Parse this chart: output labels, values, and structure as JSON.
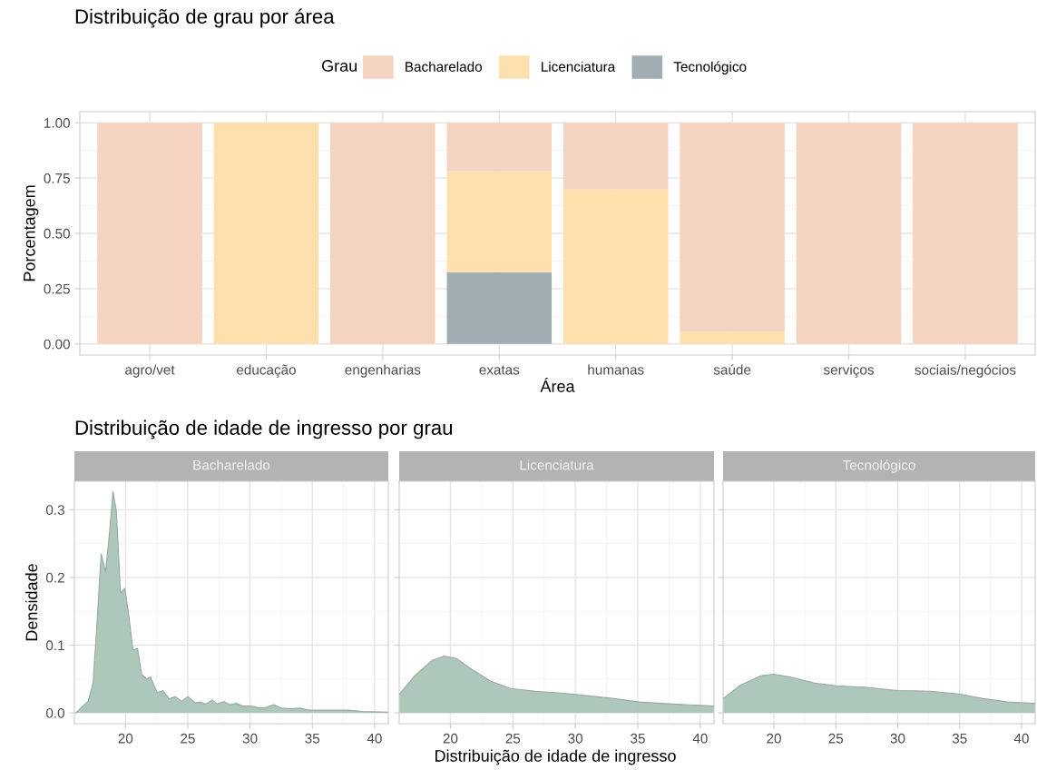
{
  "chart_data": [
    {
      "type": "bar",
      "title": "Distribuição de grau por área",
      "xlabel": "Área",
      "ylabel": "Porcentagem",
      "legend_title": "Grau",
      "legend": "top",
      "stacked": true,
      "grid": true,
      "categories": [
        "agro/vet",
        "educação",
        "engenharias",
        "exatas",
        "humanas",
        "saúde",
        "serviços",
        "sociais/negócios"
      ],
      "series": [
        {
          "name": "Tecnológico",
          "color": "#a0aeb3",
          "values": [
            0,
            0,
            0,
            0.325,
            0,
            0,
            0,
            0
          ]
        },
        {
          "name": "Licenciatura",
          "color": "#fde0ae",
          "values": [
            0,
            1,
            0,
            0.455,
            0.7,
            0.055,
            0,
            0
          ]
        },
        {
          "name": "Bacharelado",
          "color": "#f5d3c1",
          "values": [
            1,
            0,
            1,
            0.22,
            0.3,
            0.945,
            1,
            1
          ]
        }
      ],
      "ylim": [
        -0.05,
        1.05
      ],
      "yticks": [
        {
          "value": 0,
          "label": "0.00"
        },
        0.25,
        {
          "value": 0.5,
          "label": "0.50"
        },
        0.75,
        {
          "value": 1,
          "label": "1.00"
        }
      ]
    },
    {
      "type": "area",
      "title": "Distribuição de idade de ingresso por grau",
      "subtitle": "Bacharelado",
      "ylabel": "Densidade",
      "grid": true,
      "series": [
        {
          "color": "#aac4b7",
          "x": [
            16.0,
            17.0,
            17.4,
            17.7,
            18.05,
            18.4,
            18.7,
            19.0,
            19.27,
            19.6,
            19.95,
            20.25,
            20.6,
            20.97,
            21.3,
            21.7,
            22.0,
            22.55,
            23.0,
            23.5,
            24.0,
            24.5,
            25.0,
            25.6,
            26.0,
            26.45,
            26.95,
            27.4,
            27.9,
            28.4,
            28.9,
            29.4,
            30.1,
            30.8,
            31.3,
            31.9,
            32.5,
            33.3,
            34.0,
            34.7,
            35.7,
            36.7,
            37.9,
            39.1,
            41.05
          ],
          "values": [
            0.0,
            0.017,
            0.044,
            0.128,
            0.235,
            0.208,
            0.262,
            0.327,
            0.298,
            0.177,
            0.184,
            0.146,
            0.093,
            0.095,
            0.057,
            0.05,
            0.053,
            0.03,
            0.033,
            0.021,
            0.024,
            0.017,
            0.024,
            0.015,
            0.016,
            0.013,
            0.019,
            0.013,
            0.017,
            0.012,
            0.014,
            0.01,
            0.01,
            0.007,
            0.008,
            0.012,
            0.007,
            0.006,
            0.007,
            0.004,
            0.004,
            0.004,
            0.004,
            0.002,
            0.001
          ]
        }
      ],
      "xlim": [
        15.9,
        41.1
      ],
      "xticks": [
        20,
        25,
        30,
        35,
        40
      ],
      "ylim": [
        -0.016,
        0.342
      ],
      "yticks": [
        {
          "value": 0,
          "label": "0.0"
        },
        0.1,
        0.2,
        0.3
      ]
    },
    {
      "type": "area",
      "subtitle": "Licenciatura",
      "xlabel": "Distribuição de idade de ingresso",
      "grid": true,
      "tick_labels": "x",
      "series": [
        {
          "color": "#aac4b7",
          "x": [
            15.9,
            17.2,
            18.5,
            19.5,
            20.5,
            21.8,
            23.2,
            24.8,
            26.8,
            29.1,
            31.1,
            33.1,
            35.1,
            37.8,
            41.1
          ],
          "values": [
            0.027,
            0.056,
            0.077,
            0.084,
            0.08,
            0.063,
            0.047,
            0.036,
            0.032,
            0.029,
            0.025,
            0.021,
            0.016,
            0.013,
            0.01
          ]
        }
      ],
      "xlim": [
        15.9,
        41.1
      ],
      "xticks": [
        20,
        25,
        30,
        35,
        40
      ],
      "ylim": [
        -0.016,
        0.342
      ],
      "yticks": [
        0,
        0.1,
        0.2,
        0.3
      ]
    },
    {
      "type": "area",
      "subtitle": "Tecnológico",
      "grid": true,
      "tick_labels": "x",
      "series": [
        {
          "color": "#aac4b7",
          "x": [
            15.9,
            17.3,
            19.0,
            20.0,
            21.3,
            23.3,
            25.0,
            27.3,
            30.0,
            32.6,
            34.95,
            36.9,
            38.9,
            41.1
          ],
          "values": [
            0.021,
            0.041,
            0.055,
            0.057,
            0.053,
            0.044,
            0.04,
            0.038,
            0.033,
            0.032,
            0.028,
            0.021,
            0.016,
            0.014
          ]
        }
      ],
      "xlim": [
        15.9,
        41.1
      ],
      "xticks": [
        20,
        25,
        30,
        35,
        40
      ],
      "ylim": [
        -0.016,
        0.342
      ],
      "yticks": [
        0,
        0.1,
        0.2,
        0.3
      ]
    }
  ]
}
